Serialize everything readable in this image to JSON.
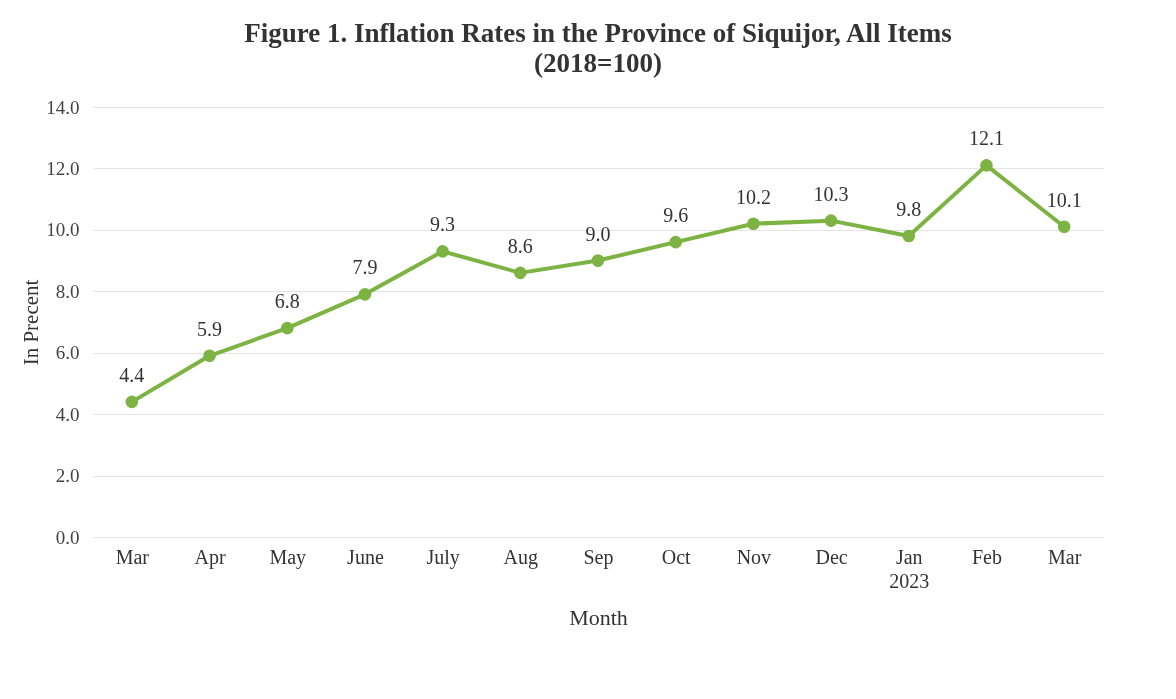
{
  "chart_data": {
    "type": "line",
    "title": "Figure 1. Inflation Rates in the Province of Siquijor,  All Items",
    "subtitle": "(2018=100)",
    "xlabel": "Month",
    "ylabel": "In Precent",
    "categories": [
      "Mar",
      "Apr",
      "May",
      "June",
      "July",
      "Aug",
      "Sep",
      "Oct",
      "Nov",
      "Dec",
      "Jan\n2023",
      "Feb",
      "Mar"
    ],
    "series": [
      {
        "color": "#7cb342",
        "values": [
          4.4,
          5.9,
          6.8,
          7.9,
          9.3,
          8.6,
          9.0,
          9.6,
          10.2,
          10.3,
          9.8,
          12.1,
          10.1
        ],
        "value_labels": [
          "4.4",
          "5.9",
          "6.8",
          "7.9",
          "9.3",
          "8.6",
          "9.0",
          "9.6",
          "10.2",
          "10.3",
          "9.8",
          "12.1",
          "10.1"
        ]
      }
    ],
    "ylim": [
      0,
      14
    ],
    "yticks": [
      {
        "value": 0,
        "label": "0.0"
      },
      {
        "value": 2,
        "label": "2.0"
      },
      {
        "value": 4,
        "label": "4.0"
      },
      {
        "value": 6,
        "label": "6.0"
      },
      {
        "value": 8,
        "label": "8.0"
      },
      {
        "value": 10,
        "label": "10.0"
      },
      {
        "value": 12,
        "label": "12.0"
      },
      {
        "value": 14,
        "label": "14.0"
      }
    ],
    "grid": "y",
    "marker": "circle",
    "line_style": "solid"
  }
}
